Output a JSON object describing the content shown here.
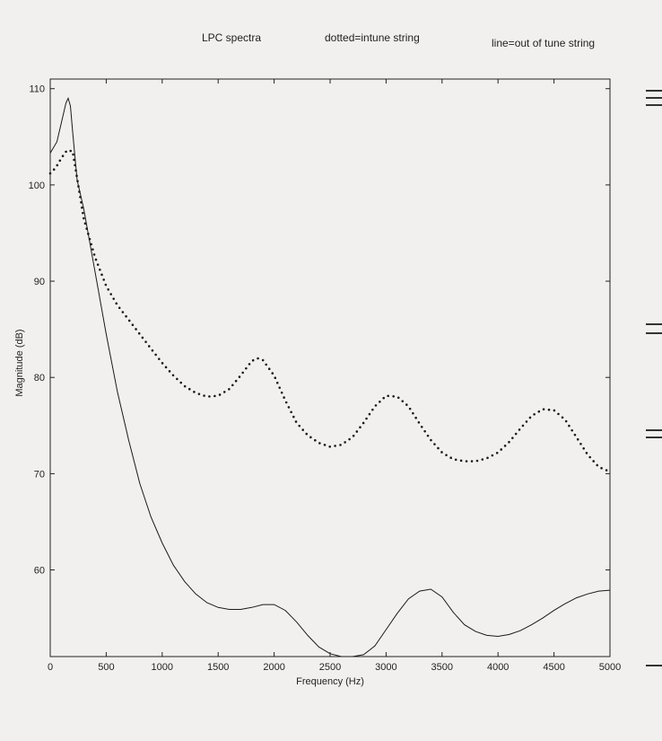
{
  "chart_data": {
    "type": "line",
    "title": "LPC spectra",
    "legend": {
      "dotted": "dotted=intune string",
      "line": "line=out of tune string"
    },
    "xlabel": "Frequency (Hz)",
    "ylabel": "Magnitude (dB)",
    "xlim": [
      0,
      5000
    ],
    "ylim": [
      51,
      111
    ],
    "xticks": [
      0,
      500,
      1000,
      1500,
      2000,
      2500,
      3000,
      3500,
      4000,
      4500,
      5000
    ],
    "yticks": [
      60,
      70,
      80,
      90,
      100,
      110
    ],
    "grid": false,
    "series": [
      {
        "style": "solid",
        "color": "#1a1a1a",
        "x": [
          0,
          60,
          100,
          140,
          160,
          180,
          200,
          240,
          300,
          400,
          500,
          600,
          700,
          800,
          900,
          1000,
          1100,
          1200,
          1300,
          1400,
          1500,
          1600,
          1700,
          1800,
          1900,
          2000,
          2100,
          2200,
          2300,
          2400,
          2500,
          2600,
          2700,
          2800,
          2900,
          3000,
          3100,
          3200,
          3300,
          3400,
          3500,
          3600,
          3700,
          3800,
          3900,
          4000,
          4100,
          4200,
          4300,
          4400,
          4500,
          4600,
          4700,
          4800,
          4900,
          5000
        ],
        "y": [
          103.3,
          104.5,
          106.5,
          108.5,
          109.0,
          108.2,
          105.5,
          100.5,
          97.5,
          91.0,
          84.5,
          78.5,
          73.5,
          69.0,
          65.5,
          62.8,
          60.5,
          58.8,
          57.5,
          56.6,
          56.1,
          55.9,
          55.9,
          56.1,
          56.4,
          56.4,
          55.8,
          54.6,
          53.2,
          52.0,
          51.3,
          51.0,
          51.0,
          51.2,
          52.1,
          53.8,
          55.5,
          57.0,
          57.8,
          58.0,
          57.2,
          55.6,
          54.3,
          53.6,
          53.2,
          53.1,
          53.3,
          53.7,
          54.3,
          55.0,
          55.8,
          56.5,
          57.1,
          57.5,
          57.8,
          57.9
        ]
      },
      {
        "style": "dotted",
        "color": "#1a1a1a",
        "x": [
          0,
          50,
          100,
          150,
          200,
          250,
          300,
          400,
          500,
          600,
          700,
          800,
          900,
          1000,
          1100,
          1200,
          1300,
          1400,
          1500,
          1600,
          1700,
          1800,
          1850,
          1900,
          2000,
          2100,
          2200,
          2300,
          2400,
          2500,
          2600,
          2700,
          2800,
          2900,
          3000,
          3100,
          3200,
          3300,
          3400,
          3500,
          3600,
          3700,
          3800,
          3900,
          4000,
          4100,
          4200,
          4300,
          4400,
          4500,
          4600,
          4700,
          4800,
          4900,
          5000
        ],
        "y": [
          101.2,
          101.8,
          102.8,
          103.6,
          103.5,
          100.0,
          96.5,
          92.5,
          89.5,
          87.5,
          86.0,
          84.5,
          83.0,
          81.5,
          80.2,
          79.1,
          78.4,
          78.0,
          78.1,
          78.8,
          80.2,
          81.7,
          82.0,
          81.8,
          80.2,
          77.6,
          75.3,
          74.0,
          73.2,
          72.8,
          73.0,
          73.8,
          75.3,
          77.0,
          78.1,
          78.0,
          77.0,
          75.2,
          73.5,
          72.2,
          71.5,
          71.3,
          71.3,
          71.6,
          72.2,
          73.3,
          74.7,
          76.0,
          76.7,
          76.6,
          75.6,
          73.8,
          72.0,
          70.7,
          70.2
        ]
      }
    ]
  }
}
